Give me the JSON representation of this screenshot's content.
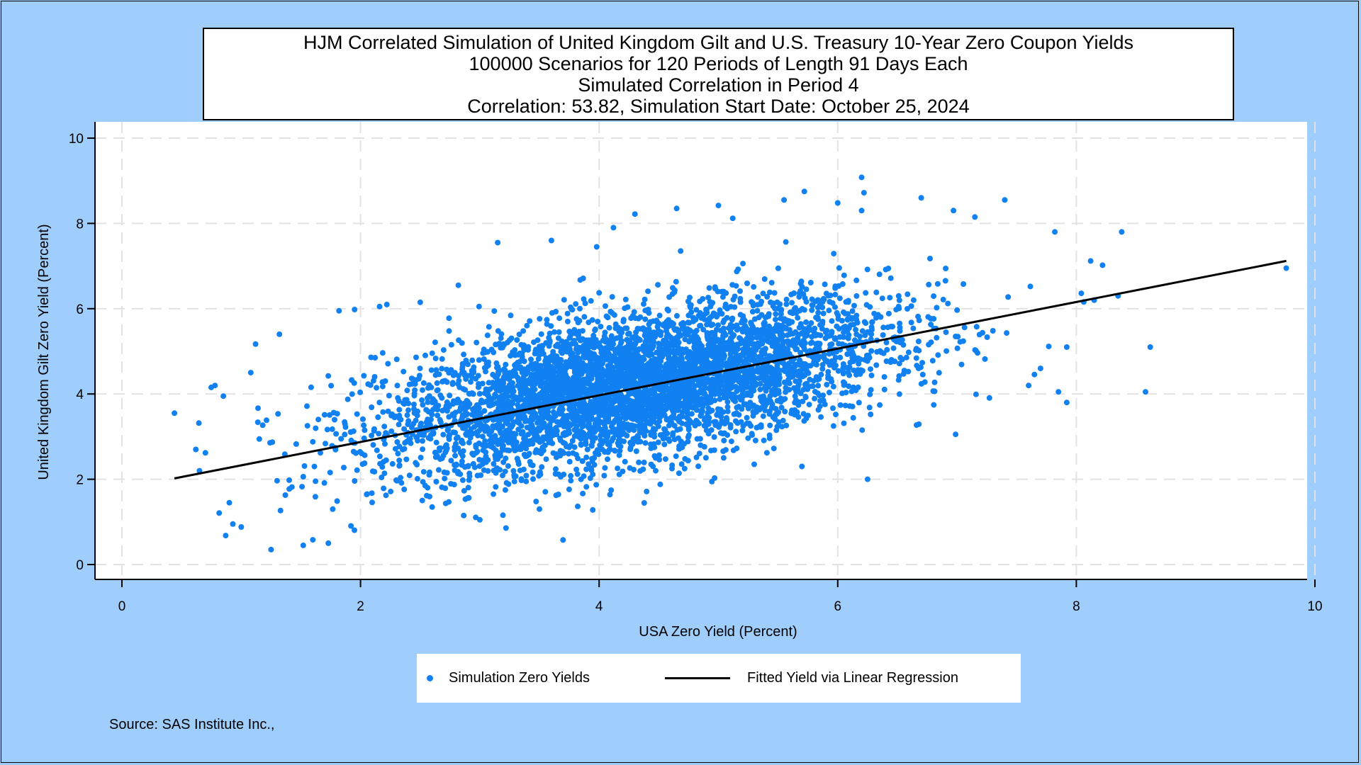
{
  "chart_data": {
    "type": "scatter",
    "title_lines": [
      "HJM Correlated Simulation of United Kingdom Gilt and U.S. Treasury 10-Year Zero Coupon Yields",
      "100000 Scenarios for 120 Periods of Length 91 Days Each",
      "Simulated Correlation in Period 4",
      "Correlation: 53.82,  Simulation Start Date:   October 25, 2024"
    ],
    "xlabel": "USA Zero Yield (Percent)",
    "ylabel": "United Kingdom Gilt Zero Yield (Percent)",
    "xlim": [
      0,
      10
    ],
    "ylim": [
      0,
      10
    ],
    "x_ticks": [
      "0",
      "2",
      "4",
      "6",
      "8",
      "10"
    ],
    "y_ticks": [
      "0",
      "2",
      "4",
      "6",
      "8",
      "10"
    ],
    "grid": true,
    "legend_position": "bottom-center",
    "series": [
      {
        "name": "Simulation Zero Yields",
        "kind": "scatter",
        "color": "#1181f2",
        "distribution": {
          "n_scenarios": 100000,
          "x_center": 4.3,
          "y_center": 4.2,
          "correlation": 0.5382
        },
        "outliers": [
          [
            0.44,
            3.55
          ],
          [
            0.62,
            2.7
          ],
          [
            0.7,
            2.62
          ],
          [
            0.65,
            2.2
          ],
          [
            0.78,
            4.2
          ],
          [
            0.85,
            3.95
          ],
          [
            0.9,
            1.45
          ],
          [
            0.87,
            0.68
          ],
          [
            0.93,
            0.95
          ],
          [
            1.0,
            0.88
          ],
          [
            1.08,
            4.5
          ],
          [
            1.12,
            5.17
          ],
          [
            1.25,
            0.35
          ],
          [
            1.32,
            5.4
          ],
          [
            1.52,
            0.45
          ],
          [
            1.6,
            0.58
          ],
          [
            1.73,
            0.5
          ],
          [
            1.82,
            5.95
          ],
          [
            1.95,
            5.98
          ],
          [
            2.16,
            6.05
          ],
          [
            2.5,
            6.15
          ],
          [
            2.82,
            6.55
          ],
          [
            3.15,
            7.55
          ],
          [
            3.6,
            7.6
          ],
          [
            3.98,
            7.45
          ],
          [
            4.12,
            7.9
          ],
          [
            4.3,
            8.22
          ],
          [
            4.65,
            8.35
          ],
          [
            5.0,
            8.42
          ],
          [
            5.12,
            8.12
          ],
          [
            5.55,
            8.55
          ],
          [
            5.72,
            8.75
          ],
          [
            6.0,
            8.48
          ],
          [
            6.2,
            8.3
          ],
          [
            6.2,
            9.08
          ],
          [
            6.22,
            8.72
          ],
          [
            6.7,
            8.6
          ],
          [
            6.97,
            8.3
          ],
          [
            7.15,
            8.15
          ],
          [
            7.4,
            8.55
          ],
          [
            7.82,
            7.8
          ],
          [
            8.38,
            7.8
          ],
          [
            8.12,
            7.12
          ],
          [
            8.22,
            7.02
          ],
          [
            8.58,
            4.05
          ],
          [
            8.62,
            5.1
          ],
          [
            7.92,
            3.8
          ],
          [
            7.85,
            4.05
          ],
          [
            7.92,
            5.1
          ],
          [
            6.25,
            2.0
          ],
          [
            5.7,
            2.3
          ],
          [
            5.3,
            2.35
          ],
          [
            9.76,
            6.95
          ],
          [
            8.35,
            6.3
          ],
          [
            8.15,
            6.2
          ],
          [
            7.6,
            4.2
          ],
          [
            7.7,
            4.6
          ],
          [
            3.5,
            1.3
          ],
          [
            3.0,
            1.05
          ]
        ]
      },
      {
        "name": "Fitted Yield via Linear Regression",
        "kind": "line",
        "color": "#000000",
        "x": [
          0.44,
          9.76
        ],
        "y": [
          2.02,
          7.12
        ]
      }
    ]
  },
  "source_text": "Source: SAS Institute Inc.,"
}
